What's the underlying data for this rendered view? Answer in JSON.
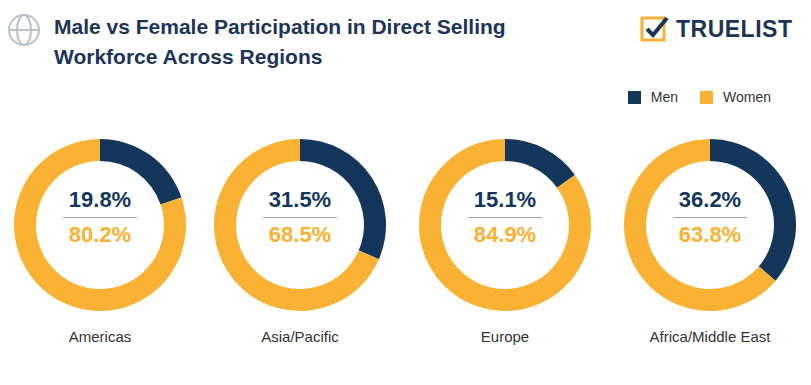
{
  "title": "Male vs Female Participation in Direct Selling Workforce Across Regions",
  "brand": "TRUELIST",
  "legend": "upper right",
  "chart_data": [
    {
      "type": "pie",
      "title": "Americas",
      "categories": [
        "Men",
        "Women"
      ],
      "values": [
        19.8,
        80.2
      ],
      "value_labels": [
        "19.8%",
        "80.2%"
      ],
      "colors": [
        "#14365a",
        "#f9b233"
      ],
      "data_labels": true
    },
    {
      "type": "pie",
      "title": "Asia/Pacific",
      "categories": [
        "Men",
        "Women"
      ],
      "values": [
        31.5,
        68.5
      ],
      "value_labels": [
        "31.5%",
        "68.5%"
      ],
      "colors": [
        "#14365a",
        "#f9b233"
      ],
      "data_labels": true
    },
    {
      "type": "pie",
      "title": "Europe",
      "categories": [
        "Men",
        "Women"
      ],
      "values": [
        15.1,
        84.9
      ],
      "value_labels": [
        "15.1%",
        "84.9%"
      ],
      "colors": [
        "#14365a",
        "#f9b233"
      ],
      "data_labels": true
    },
    {
      "type": "pie",
      "title": "Africa/Middle East",
      "categories": [
        "Men",
        "Women"
      ],
      "values": [
        36.2,
        63.8
      ],
      "value_labels": [
        "36.2%",
        "63.8%"
      ],
      "colors": [
        "#14365a",
        "#f9b233"
      ],
      "data_labels": true
    }
  ]
}
